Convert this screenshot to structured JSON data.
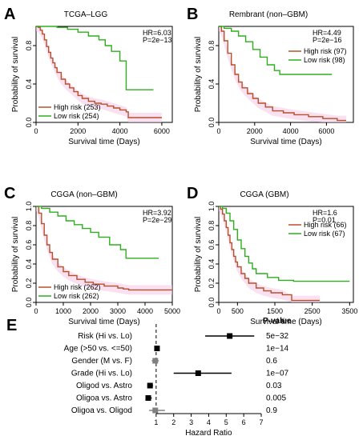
{
  "colors": {
    "high": "#B5502A",
    "low": "#2EAE1F",
    "ci": "#F6C8E6",
    "axis": "#000000"
  },
  "chart_data": [
    {
      "panel": "A",
      "type": "line",
      "title": "TCGA–LGG",
      "xlabel": "Survival time (Days)",
      "ylabel": "Probability of survival",
      "xlim": [
        0,
        6500
      ],
      "ylim": [
        0,
        1.0
      ],
      "xticks": [
        0,
        2000,
        4000,
        6000
      ],
      "yticks": [
        0.0,
        0.4,
        0.8
      ],
      "hr": "HR=6.03",
      "p": "P=2e−13",
      "legend_position": "bottom-left",
      "series": [
        {
          "name": "High risk (253)",
          "key": "high",
          "x": [
            0,
            100,
            200,
            300,
            400,
            500,
            600,
            700,
            800,
            900,
            1000,
            1200,
            1400,
            1600,
            1800,
            2000,
            2200,
            2500,
            2800,
            3100,
            3400,
            3700,
            4000,
            4300,
            4400,
            5000,
            6000
          ],
          "y": [
            1.0,
            0.99,
            0.96,
            0.92,
            0.86,
            0.79,
            0.73,
            0.67,
            0.62,
            0.57,
            0.52,
            0.45,
            0.4,
            0.36,
            0.32,
            0.28,
            0.25,
            0.22,
            0.2,
            0.19,
            0.17,
            0.15,
            0.13,
            0.11,
            0.05,
            0.05,
            0.05
          ]
        },
        {
          "name": "Low risk (254)",
          "key": "low",
          "x": [
            0,
            500,
            1000,
            1500,
            2000,
            2500,
            3000,
            3300,
            3600,
            4000,
            4300,
            5000,
            5600
          ],
          "y": [
            1.0,
            1.0,
            0.99,
            0.97,
            0.94,
            0.9,
            0.86,
            0.8,
            0.74,
            0.64,
            0.34,
            0.34,
            0.34
          ]
        }
      ]
    },
    {
      "panel": "B",
      "type": "line",
      "title": "Rembrant (non–GBM)",
      "xlabel": "Survival time (Days)",
      "ylabel": "Probability of survival",
      "xlim": [
        0,
        7500
      ],
      "ylim": [
        0,
        1.0
      ],
      "xticks": [
        0,
        2000,
        4000,
        6000
      ],
      "yticks": [
        0.0,
        0.4,
        0.8
      ],
      "hr": "HR=4.49",
      "p": "P=2e−16",
      "legend_position": "right",
      "series": [
        {
          "name": "High risk (97)",
          "key": "high",
          "x": [
            0,
            150,
            300,
            500,
            700,
            900,
            1100,
            1300,
            1600,
            1900,
            2200,
            2600,
            3000,
            3600,
            4200,
            5000,
            5800,
            6600,
            7100
          ],
          "y": [
            1.0,
            0.95,
            0.85,
            0.72,
            0.6,
            0.5,
            0.42,
            0.36,
            0.3,
            0.25,
            0.2,
            0.16,
            0.12,
            0.1,
            0.08,
            0.06,
            0.04,
            0.02,
            0.02
          ]
        },
        {
          "name": "Low risk (98)",
          "key": "low",
          "x": [
            0,
            300,
            700,
            1100,
            1500,
            1900,
            2300,
            2700,
            3100,
            3400,
            4000,
            5000,
            6300
          ],
          "y": [
            1.0,
            0.98,
            0.95,
            0.9,
            0.84,
            0.76,
            0.68,
            0.6,
            0.54,
            0.5,
            0.5,
            0.5,
            0.5
          ]
        }
      ]
    },
    {
      "panel": "C",
      "type": "line",
      "title": "CGGA (non–GBM)",
      "xlabel": "Survival time (Days)",
      "ylabel": "Probability of survival",
      "xlim": [
        0,
        5000
      ],
      "ylim": [
        0,
        1.0
      ],
      "xticks": [
        0,
        1000,
        2000,
        3000,
        4000,
        5000
      ],
      "yticks": [
        0.0,
        0.2,
        0.4,
        0.6,
        0.8,
        1.0
      ],
      "hr": "HR=3.92",
      "p": "P=2e−29",
      "legend_position": "bottom-left",
      "series": [
        {
          "name": "High risk (262)",
          "key": "high",
          "x": [
            0,
            100,
            200,
            300,
            400,
            500,
            600,
            800,
            1000,
            1200,
            1500,
            1800,
            2100,
            2500,
            3000,
            3200,
            3400,
            4000,
            4500,
            5000
          ],
          "y": [
            1.0,
            0.93,
            0.82,
            0.7,
            0.6,
            0.52,
            0.45,
            0.37,
            0.32,
            0.28,
            0.24,
            0.21,
            0.19,
            0.17,
            0.15,
            0.14,
            0.13,
            0.13,
            0.13,
            0.13
          ]
        },
        {
          "name": "Low risk (262)",
          "key": "low",
          "x": [
            0,
            200,
            500,
            800,
            1100,
            1400,
            1700,
            2000,
            2300,
            2700,
            3100,
            3300,
            3600,
            4000,
            4500
          ],
          "y": [
            1.0,
            0.98,
            0.94,
            0.9,
            0.85,
            0.81,
            0.77,
            0.73,
            0.68,
            0.6,
            0.55,
            0.46,
            0.46,
            0.46,
            0.46
          ]
        }
      ]
    },
    {
      "panel": "D",
      "type": "line",
      "title": "CGGA (GBM)",
      "xlabel": "Survival time (Days)",
      "ylabel": "Probability of survival",
      "xlim": [
        0,
        3600
      ],
      "ylim": [
        0,
        1.0
      ],
      "xticks": [
        0,
        500,
        1500,
        2500,
        3500
      ],
      "yticks": [
        0.0,
        0.2,
        0.4,
        0.6,
        0.8,
        1.0
      ],
      "hr": "HR=1.6",
      "p": "P=0.01",
      "legend_position": "right",
      "series": [
        {
          "name": "High risk (66)",
          "key": "high",
          "x": [
            0,
            50,
            100,
            150,
            200,
            250,
            300,
            350,
            400,
            450,
            500,
            600,
            700,
            800,
            1000,
            1200,
            1400,
            1700,
            1950,
            2700
          ],
          "y": [
            1.0,
            0.97,
            0.92,
            0.85,
            0.78,
            0.7,
            0.62,
            0.55,
            0.48,
            0.42,
            0.37,
            0.3,
            0.25,
            0.2,
            0.15,
            0.12,
            0.1,
            0.08,
            0.02,
            0.02
          ]
        },
        {
          "name": "Low risk (67)",
          "key": "low",
          "x": [
            0,
            100,
            200,
            300,
            400,
            500,
            600,
            700,
            800,
            900,
            1000,
            1300,
            1600,
            2000,
            2500,
            3000,
            3500
          ],
          "y": [
            1.0,
            0.98,
            0.93,
            0.85,
            0.76,
            0.65,
            0.56,
            0.48,
            0.41,
            0.35,
            0.3,
            0.26,
            0.23,
            0.22,
            0.22,
            0.22,
            0.22
          ]
        }
      ]
    },
    {
      "panel": "E",
      "type": "forest",
      "xlabel": "Hazard Ratio",
      "xlim": [
        0,
        7
      ],
      "xticks": [
        1,
        2,
        3,
        4,
        5,
        6,
        7
      ],
      "reference_line": 1,
      "pvalue_header": "P-value",
      "rows": [
        {
          "label": "Risk (Hi vs. Lo)",
          "hr": 5.2,
          "lo": 3.8,
          "hi": 6.6,
          "p": "5e−32",
          "color": "#000000"
        },
        {
          "label": "Age (>50 vs. <=50)",
          "hr": 1.05,
          "lo": 0.98,
          "hi": 1.12,
          "p": "1e−14",
          "color": "#000000"
        },
        {
          "label": "Gender (M vs. F)",
          "hr": 0.95,
          "lo": 0.75,
          "hi": 1.15,
          "p": "0.6",
          "color": "#808080"
        },
        {
          "label": "Grade (Hi vs. Lo)",
          "hr": 3.4,
          "lo": 2.0,
          "hi": 5.3,
          "p": "1e−07",
          "color": "#000000"
        },
        {
          "label": "Oligod vs. Astro",
          "hr": 0.65,
          "lo": 0.5,
          "hi": 0.82,
          "p": "0.03",
          "color": "#000000"
        },
        {
          "label": "Oligoa vs. Astro",
          "hr": 0.55,
          "lo": 0.4,
          "hi": 0.75,
          "p": "0.005",
          "color": "#000000"
        },
        {
          "label": "Oligoa vs. Oligod",
          "hr": 0.95,
          "lo": 0.6,
          "hi": 1.5,
          "p": "0.9",
          "color": "#808080"
        }
      ]
    }
  ]
}
